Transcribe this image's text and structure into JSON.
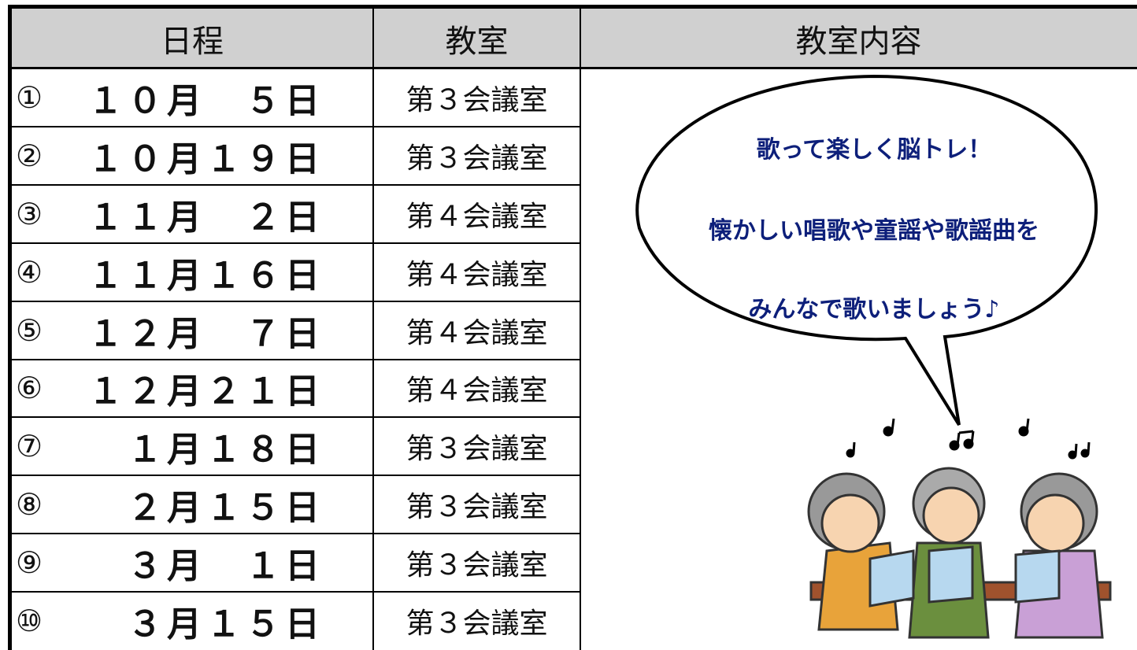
{
  "table": {
    "header": [
      "日程",
      "教室",
      "教室内容"
    ],
    "rows": [
      [
        "①",
        "１０月　５日",
        "第３会議室"
      ],
      [
        "②",
        "１０月１９日",
        "第３会議室"
      ],
      [
        "③",
        "１１月　２日",
        "第４会議室"
      ],
      [
        "④",
        "１１月１６日",
        "第４会議室"
      ],
      [
        "⑤",
        "１２月　７日",
        "第４会議室"
      ],
      [
        "⑥",
        "１２月２１日",
        "第４会議室"
      ],
      [
        "⑦",
        "１月１８日",
        "第３会議室"
      ],
      [
        "⑧",
        "２月１５日",
        "第３会議室"
      ],
      [
        "⑨",
        "３月　１日",
        "第３会議室"
      ],
      [
        "⑩",
        "３月１５日",
        "第３会議室"
      ]
    ]
  },
  "bubble": {
    "lines": [
      "歌って楽しく脳トレ！",
      "懐かしい唱歌や童謡や歌謡曲を",
      "みんなで歌いましょう♪"
    ]
  }
}
